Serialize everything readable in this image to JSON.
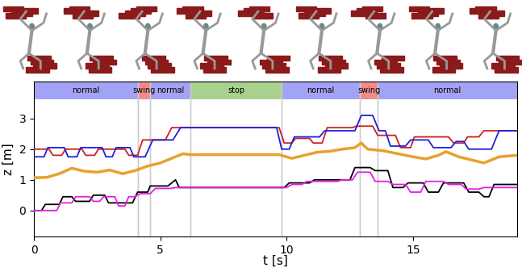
{
  "chart_data": {
    "type": "line",
    "xlabel": "t [s]",
    "ylabel": "z [m]",
    "xlim": [
      0,
      19.1
    ],
    "ylim": [
      -0.85,
      4.2
    ],
    "xticks": [
      0,
      5,
      10,
      15
    ],
    "yticks": [
      0,
      1,
      2,
      3
    ],
    "phases": [
      {
        "label": "normal",
        "start": 0,
        "end": 4.1,
        "color": "#a3a3f5"
      },
      {
        "label": "swing",
        "start": 4.1,
        "end": 4.6,
        "color": "#f08c8c"
      },
      {
        "label": "normal",
        "start": 4.6,
        "end": 6.2,
        "color": "#a3a3f5"
      },
      {
        "label": "stop",
        "start": 6.2,
        "end": 9.8,
        "color": "#a9d18e"
      },
      {
        "label": "normal",
        "start": 9.8,
        "end": 12.9,
        "color": "#a3a3f5"
      },
      {
        "label": "swing",
        "start": 12.9,
        "end": 13.6,
        "color": "#f08c8c"
      },
      {
        "label": "normal",
        "start": 13.6,
        "end": 19.1,
        "color": "#a3a3f5"
      }
    ],
    "series": [
      {
        "color": "#cc2020",
        "x": [
          0,
          0.6,
          0.75,
          1.1,
          1.25,
          1.9,
          2.05,
          2.4,
          2.55,
          3.6,
          3.75,
          4.1,
          4.3,
          5.2,
          5.45,
          9.7,
          9.9,
          10.2,
          10.35,
          10.9,
          11.05,
          11.4,
          11.6,
          12.6,
          12.75,
          13.4,
          13.6,
          14.3,
          14.5,
          14.9,
          15.05,
          16.4,
          16.6,
          17.0,
          17.15,
          17.6,
          17.8,
          19.1
        ],
        "values": [
          2.0,
          2.0,
          1.8,
          1.8,
          2.0,
          2.0,
          1.8,
          1.8,
          2.0,
          2.0,
          1.8,
          1.8,
          2.3,
          2.3,
          2.7,
          2.7,
          2.2,
          2.2,
          2.35,
          2.35,
          2.2,
          2.2,
          2.7,
          2.7,
          2.75,
          2.75,
          2.45,
          2.45,
          2.05,
          2.05,
          2.4,
          2.4,
          2.2,
          2.2,
          2.4,
          2.4,
          2.6,
          2.6
        ]
      },
      {
        "color": "#1f1fdd",
        "x": [
          0,
          0.4,
          0.55,
          1.2,
          1.35,
          1.7,
          1.85,
          2.7,
          2.85,
          3.1,
          3.25,
          3.8,
          3.95,
          4.4,
          4.7,
          5.5,
          5.8,
          9.6,
          9.8,
          10.1,
          10.3,
          11.3,
          11.5,
          12.7,
          12.95,
          13.4,
          13.65,
          13.9,
          14.1,
          14.7,
          14.9,
          15.6,
          15.8,
          16.5,
          16.7,
          17.0,
          17.2,
          18.1,
          18.4,
          19.1
        ],
        "values": [
          1.75,
          1.75,
          2.05,
          2.05,
          1.75,
          1.75,
          2.05,
          2.05,
          1.75,
          1.75,
          2.05,
          2.05,
          1.75,
          1.75,
          2.3,
          2.3,
          2.7,
          2.7,
          2.0,
          2.0,
          2.4,
          2.4,
          2.6,
          2.6,
          3.1,
          3.1,
          2.6,
          2.6,
          2.1,
          2.1,
          2.3,
          2.3,
          2.05,
          2.05,
          2.25,
          2.25,
          2.0,
          2.0,
          2.6,
          2.6
        ]
      },
      {
        "color": "#e8a030",
        "x": [
          0,
          0.5,
          1.0,
          1.5,
          2.0,
          2.5,
          3.0,
          3.5,
          4.0,
          4.5,
          5.0,
          5.5,
          5.9,
          6.2,
          9.7,
          10.2,
          10.7,
          11.2,
          11.7,
          12.2,
          12.7,
          12.95,
          13.2,
          13.8,
          14.4,
          15.0,
          15.5,
          16.0,
          16.3,
          16.8,
          17.3,
          17.8,
          18.4,
          19.1
        ],
        "values": [
          1.07,
          1.08,
          1.2,
          1.38,
          1.28,
          1.25,
          1.32,
          1.2,
          1.3,
          1.45,
          1.55,
          1.72,
          1.85,
          1.82,
          1.82,
          1.7,
          1.8,
          1.9,
          1.93,
          2.0,
          2.05,
          2.2,
          2.0,
          1.95,
          1.85,
          1.75,
          1.68,
          1.8,
          1.92,
          1.75,
          1.65,
          1.55,
          1.75,
          1.8
        ]
      },
      {
        "color": "#000000",
        "x": [
          0,
          0.3,
          0.45,
          1.0,
          1.15,
          1.5,
          1.65,
          2.2,
          2.35,
          2.8,
          2.95,
          3.9,
          4.1,
          4.5,
          4.6,
          5.3,
          5.6,
          5.75,
          9.9,
          10.1,
          10.9,
          11.1,
          12.5,
          12.7,
          13.3,
          13.5,
          14.0,
          14.2,
          14.6,
          14.8,
          15.4,
          15.6,
          16.0,
          16.2,
          17.0,
          17.2,
          17.6,
          17.8,
          18.0,
          18.2,
          19.1
        ],
        "values": [
          0,
          0,
          0.2,
          0.2,
          0.45,
          0.45,
          0.3,
          0.3,
          0.5,
          0.5,
          0.25,
          0.25,
          0.6,
          0.6,
          0.8,
          0.8,
          1.0,
          0.75,
          0.75,
          0.9,
          0.9,
          1.0,
          1.0,
          1.4,
          1.4,
          1.3,
          1.3,
          0.75,
          0.75,
          0.9,
          0.9,
          0.6,
          0.6,
          0.9,
          0.9,
          0.6,
          0.6,
          0.45,
          0.45,
          0.85,
          0.85
        ]
      },
      {
        "color": "#e020e0",
        "x": [
          0,
          0.9,
          1.05,
          1.5,
          1.65,
          2.2,
          2.35,
          2.6,
          2.75,
          3.2,
          3.35,
          3.6,
          3.75,
          4.0,
          4.2,
          4.6,
          4.8,
          5.4,
          5.6,
          10.0,
          10.2,
          10.6,
          10.8,
          12.0,
          12.2,
          12.6,
          12.8,
          13.3,
          13.5,
          14.0,
          14.2,
          14.7,
          14.9,
          15.3,
          15.5,
          16.2,
          16.4,
          16.9,
          17.1,
          17.6,
          17.8,
          19.1
        ],
        "values": [
          0,
          0,
          0.25,
          0.25,
          0.45,
          0.45,
          0.3,
          0.3,
          0.45,
          0.45,
          0.15,
          0.15,
          0.45,
          0.45,
          0.55,
          0.55,
          0.72,
          0.72,
          0.75,
          0.75,
          0.85,
          0.85,
          0.95,
          0.95,
          1.0,
          1.0,
          1.25,
          1.25,
          0.95,
          0.95,
          0.85,
          0.85,
          0.6,
          0.6,
          0.95,
          0.95,
          0.85,
          0.85,
          0.7,
          0.7,
          0.75,
          0.75
        ]
      }
    ]
  }
}
